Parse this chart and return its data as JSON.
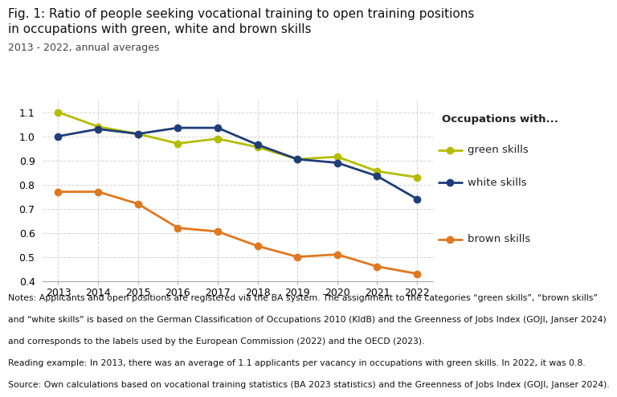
{
  "title_line1": "Fig. 1: Ratio of people seeking vocational training to open training positions",
  "title_line2": "in occupations with green, white and brown skills",
  "subtitle": "2013 - 2022, annual averages",
  "years": [
    2013,
    2014,
    2015,
    2016,
    2017,
    2018,
    2019,
    2020,
    2021,
    2022
  ],
  "green_skills": [
    1.1,
    1.04,
    1.01,
    0.97,
    0.99,
    0.955,
    0.905,
    0.915,
    0.855,
    0.83
  ],
  "white_skills": [
    1.0,
    1.03,
    1.01,
    1.035,
    1.035,
    0.965,
    0.905,
    0.89,
    0.835,
    0.74
  ],
  "brown_skills": [
    0.77,
    0.77,
    0.72,
    0.62,
    0.605,
    0.545,
    0.5,
    0.51,
    0.46,
    0.43
  ],
  "green_color": "#b5bd00",
  "white_color": "#1f3d7a",
  "brown_color": "#e07820",
  "ylim_min": 0.4,
  "ylim_max": 1.15,
  "yticks": [
    0.4,
    0.5,
    0.6,
    0.7,
    0.8,
    0.9,
    1.0,
    1.1
  ],
  "legend_title": "Occupations with...",
  "legend_green": "green skills",
  "legend_white": "white skills",
  "legend_brown": "brown skills",
  "note_line1": "Notes: Applicants and open positions are registered via the BA system. The assignment to the categories “green skills”, “brown skills”",
  "note_line2": "and “white skills” is based on the German Classification of Occupations 2010 (KldB) and the Greenness of Jobs Index (GOJI, Janser 2024)",
  "note_line3": "and corresponds to the labels used by the European Commission (2022) and the OECD (2023).",
  "reading_line": "Reading example: In 2013, there was an average of 1.1 applicants per vacancy in occupations with green skills. In 2022, it was 0.8.",
  "source_line": "Source: Own calculations based on vocational training statistics (BA 2023 statistics) and the Greenness of Jobs Index (GOJI, Janser 2024).",
  "marker_size": 7,
  "line_width": 2.0,
  "bg_color": "#ffffff",
  "grid_color": "#d0d0d0",
  "title_fontsize": 11,
  "subtitle_fontsize": 9,
  "tick_fontsize": 9,
  "legend_fontsize": 9.5,
  "note_fontsize": 7.8
}
